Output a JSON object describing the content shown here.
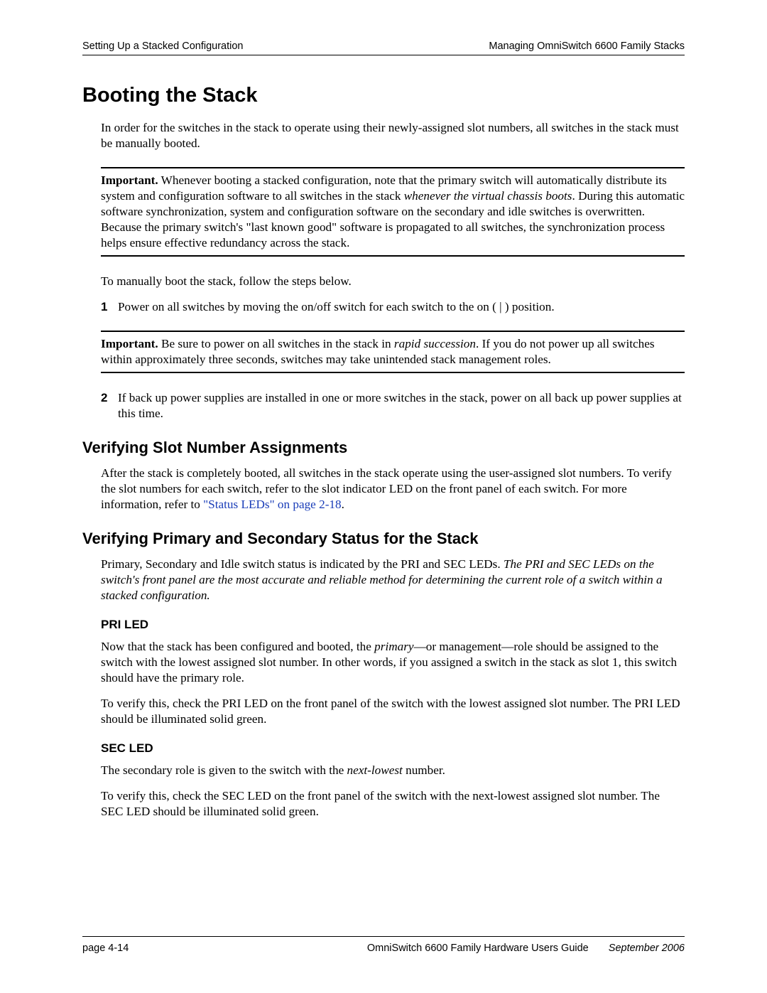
{
  "header": {
    "left": "Setting Up a Stacked Configuration",
    "right": "Managing OmniSwitch 6600 Family Stacks"
  },
  "h1": "Booting the Stack",
  "intro": "In order for the switches in the stack to operate using their newly-assigned slot numbers, all switches in the stack must be manually booted.",
  "callout1": {
    "lead": "Important.",
    "body_pre": " Whenever booting a stacked configuration, note that the primary switch will automatically distribute its system and configuration software to all switches in the stack ",
    "ital": "whenever the virtual chassis boots",
    "body_post": ". During this automatic software synchronization, system and configuration software on the secondary and idle switches is overwritten. Because the primary switch's \"last known good\" software is propagated to all switches, the synchronization process helps ensure effective redundancy across the stack."
  },
  "para_manual": "To manually boot the stack, follow the steps below.",
  "step1": {
    "num": "1",
    "text": "Power on all switches by moving the on/off switch for each switch to the on ( | ) position."
  },
  "callout2": {
    "lead": "Important.",
    "body_pre": " Be sure to power on all switches in the stack in ",
    "ital": "rapid succession",
    "body_post": ". If you do not power up all switches within approximately three seconds, switches may take unintended stack management roles."
  },
  "step2": {
    "num": "2",
    "text": "If back up power supplies are installed in one or more switches in the stack, power on all back up power supplies at this time."
  },
  "h2_verify_slot": "Verifying Slot Number Assignments",
  "verify_slot_para_pre": "After the stack is completely booted, all switches in the stack operate using the user-assigned slot numbers. To verify the slot numbers for each switch, refer to the slot indicator LED on the front panel of each switch. For more information, refer to ",
  "verify_slot_link": "\"Status LEDs\" on page 2-18",
  "verify_slot_para_post": ".",
  "h2_verify_pri_sec": "Verifying Primary and Secondary Status for the Stack",
  "verify_pri_sec_para_pre": "Primary, Secondary and Idle switch status is indicated by the PRI and SEC LEDs. ",
  "verify_pri_sec_ital": "The PRI and SEC LEDs on the switch's front panel are the most accurate and reliable method for determining the current role of a switch within a stacked configuration.",
  "h3_pri": "PRI LED",
  "pri_para1_pre": "Now that the stack has been configured and booted, the ",
  "pri_para1_ital": "primary",
  "pri_para1_post": "—or management—role should be assigned to the switch with the lowest assigned slot number. In other words, if you assigned a switch in the stack as slot 1, this switch should have the primary role.",
  "pri_para2": "To verify this, check the PRI LED on the front panel of the switch with the lowest assigned slot number. The PRI LED should be illuminated solid green.",
  "h3_sec": "SEC LED",
  "sec_para1_pre": "The secondary role is given to the switch with the ",
  "sec_para1_ital": "next-lowest",
  "sec_para1_post": " number.",
  "sec_para2": "To verify this, check the SEC LED on the front panel of the switch with the next-lowest assigned slot number. The SEC LED should be illuminated solid green.",
  "footer": {
    "page": "page 4-14",
    "title": "OmniSwitch 6600 Family Hardware Users Guide",
    "date": "September 2006"
  }
}
